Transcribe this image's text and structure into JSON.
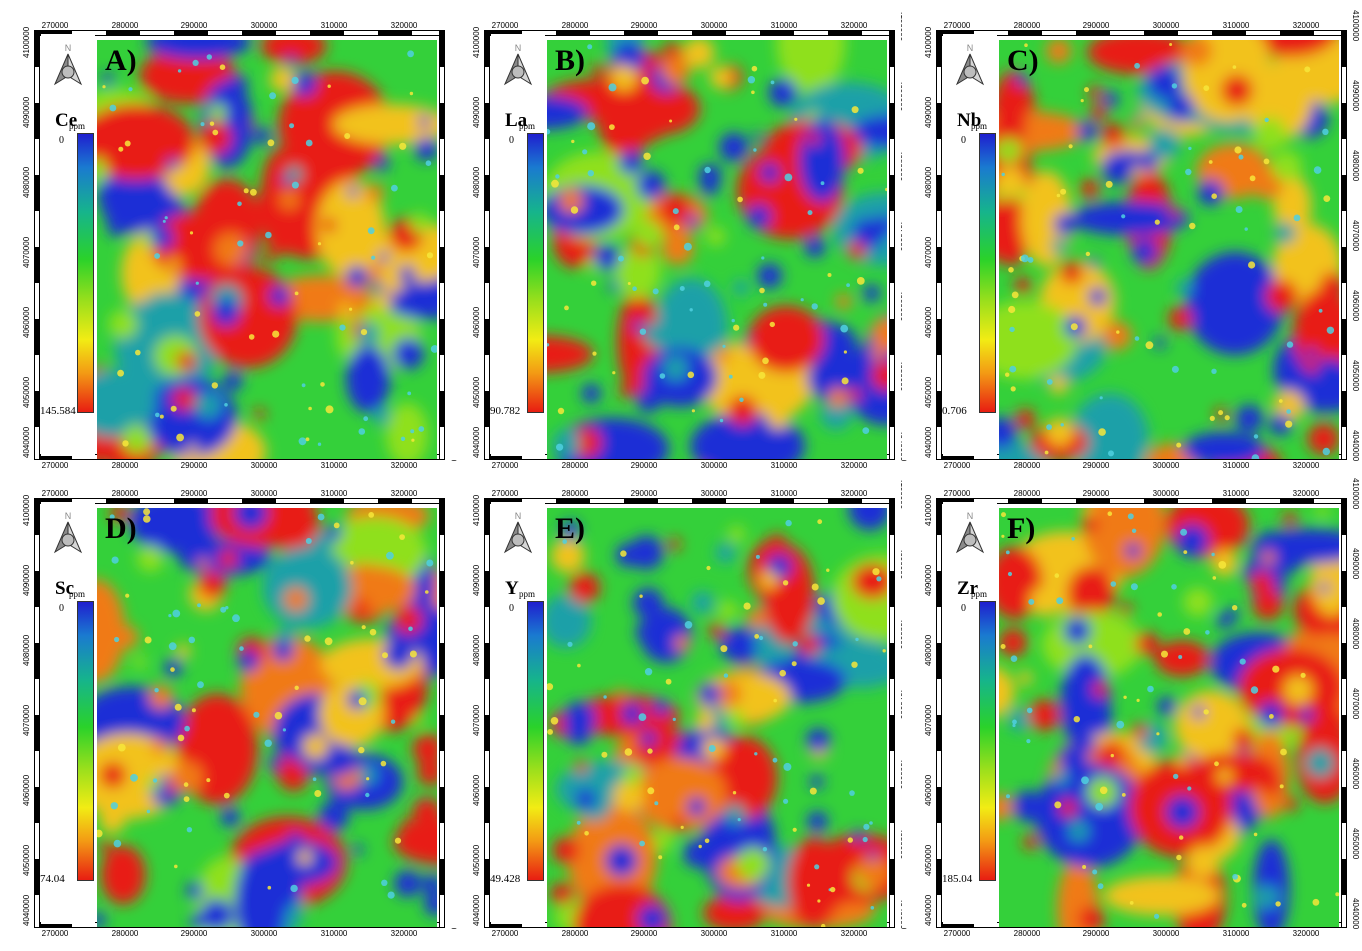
{
  "x_ticks": [
    "270000",
    "280000",
    "290000",
    "300000",
    "310000",
    "320000"
  ],
  "y_ticks": [
    "4100000",
    "4090000",
    "4080000",
    "4070000",
    "4060000",
    "4050000",
    "4040000"
  ],
  "north_label": "N",
  "unit": "ppm",
  "colors": {
    "low": "#1f1fd0",
    "mid": "#2ad22a",
    "high": "#e81d12"
  },
  "panels": [
    {
      "letter": "A)",
      "element": "Ce",
      "legend_top": "0",
      "legend_bottom": "145.584"
    },
    {
      "letter": "B)",
      "element": "La",
      "legend_top": "0",
      "legend_bottom": "90.782"
    },
    {
      "letter": "C)",
      "element": "Nb",
      "legend_top": "0",
      "legend_bottom": "0.706"
    },
    {
      "letter": "D)",
      "element": "Sc",
      "legend_top": "0",
      "legend_bottom": "74.04"
    },
    {
      "letter": "E)",
      "element": "Y",
      "legend_top": "0",
      "legend_bottom": "49.428"
    },
    {
      "letter": "F)",
      "element": "Zr",
      "legend_top": "0",
      "legend_bottom": "185.04"
    }
  ]
}
